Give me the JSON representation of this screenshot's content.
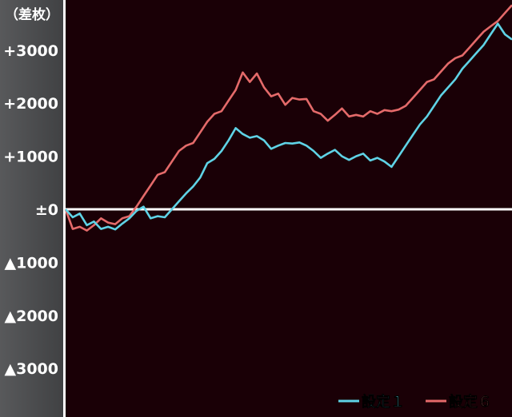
{
  "chart_data": {
    "type": "line",
    "unit_label": "（差枚）",
    "ylim": [
      -3800,
      3900
    ],
    "y_ticks": [
      {
        "value": 3000,
        "label": "+3000"
      },
      {
        "value": 2000,
        "label": "+2000"
      },
      {
        "value": 1000,
        "label": "+1000"
      },
      {
        "value": 0,
        "label": "±0"
      },
      {
        "value": -1000,
        "label": "▲1000"
      },
      {
        "value": -2000,
        "label": "▲2000"
      },
      {
        "value": -3000,
        "label": "▲3000"
      }
    ],
    "zero_line": true,
    "grid": false,
    "legend_position": "bottom-right",
    "series": [
      {
        "name": "設定１",
        "color": "#5fd3e6",
        "values": [
          0,
          -150,
          -80,
          -300,
          -230,
          -370,
          -330,
          -380,
          -270,
          -170,
          -30,
          50,
          -170,
          -130,
          -150,
          0,
          150,
          300,
          430,
          600,
          870,
          950,
          1100,
          1300,
          1530,
          1420,
          1350,
          1380,
          1300,
          1140,
          1200,
          1250,
          1240,
          1260,
          1200,
          1100,
          970,
          1050,
          1120,
          1000,
          930,
          1000,
          1050,
          920,
          970,
          900,
          800,
          1000,
          1200,
          1400,
          1600,
          1750,
          1950,
          2150,
          2300,
          2450,
          2650,
          2800,
          2950,
          3100,
          3300,
          3500,
          3300,
          3200
        ]
      },
      {
        "name": "設定６",
        "color": "#e46a6a",
        "values": [
          0,
          -370,
          -330,
          -400,
          -300,
          -170,
          -250,
          -280,
          -170,
          -130,
          50,
          250,
          450,
          650,
          700,
          900,
          1100,
          1200,
          1250,
          1450,
          1650,
          1800,
          1850,
          2050,
          2250,
          2580,
          2400,
          2560,
          2300,
          2130,
          2180,
          1970,
          2100,
          2070,
          2080,
          1850,
          1800,
          1670,
          1780,
          1900,
          1750,
          1780,
          1750,
          1850,
          1800,
          1870,
          1850,
          1880,
          1950,
          2100,
          2250,
          2400,
          2450,
          2600,
          2750,
          2850,
          2900,
          3050,
          3200,
          3350,
          3450,
          3550,
          3700,
          3850
        ]
      }
    ]
  }
}
